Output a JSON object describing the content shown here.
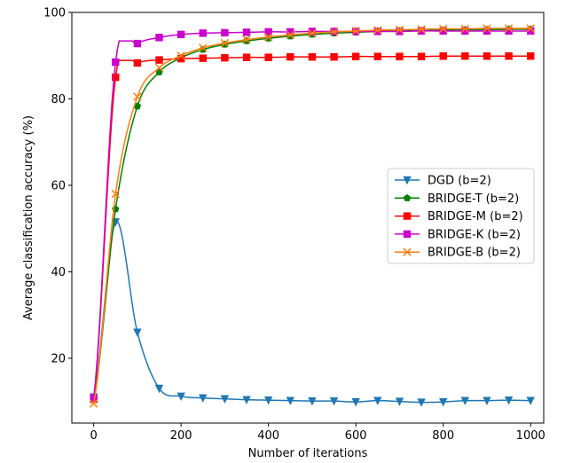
{
  "chart_data": {
    "type": "line",
    "title": "",
    "xlabel": "Number of iterations",
    "ylabel": "Average classification accuracy (%)",
    "xlim": [
      -50,
      1030
    ],
    "ylim": [
      5,
      100
    ],
    "xticks": [
      0,
      200,
      400,
      600,
      800,
      1000
    ],
    "yticks": [
      20,
      40,
      60,
      80,
      100
    ],
    "grid": false,
    "legend_position": "center-right",
    "x": [
      0,
      50,
      100,
      150,
      200,
      250,
      300,
      350,
      400,
      450,
      500,
      550,
      600,
      650,
      700,
      750,
      800,
      850,
      900,
      950,
      1000
    ],
    "series": [
      {
        "name": "DGD (b=2)",
        "color": "#1f77b4",
        "marker": "triangle-down",
        "values": [
          11,
          51.5,
          26,
          13,
          11.2,
          10.8,
          10.6,
          10.4,
          10.3,
          10.2,
          10.1,
          10.1,
          9.9,
          10.2,
          10.0,
          9.8,
          9.9,
          10.2,
          10.2,
          10.3,
          10.2
        ]
      },
      {
        "name": "BRIDGE-T (b=2)",
        "color": "#008000",
        "marker": "pentagon",
        "values": [
          10.5,
          54.5,
          78.3,
          86.2,
          89.5,
          91.4,
          92.6,
          93.4,
          94.0,
          94.5,
          94.9,
          95.2,
          95.4,
          95.6,
          95.7,
          95.8,
          95.9,
          96.0,
          96.0,
          96.1,
          96.1
        ]
      },
      {
        "name": "BRIDGE-M (b=2)",
        "color": "#ff0000",
        "marker": "square",
        "values": [
          10.5,
          85.0,
          88.3,
          89.0,
          89.3,
          89.4,
          89.5,
          89.6,
          89.6,
          89.7,
          89.7,
          89.7,
          89.8,
          89.8,
          89.8,
          89.8,
          89.9,
          89.9,
          89.9,
          89.9,
          89.9
        ]
      },
      {
        "name": "BRIDGE-K (b=2)",
        "color": "#cc00cc",
        "marker": "square",
        "values": [
          10.8,
          88.5,
          92.8,
          94.2,
          94.9,
          95.2,
          95.3,
          95.4,
          95.5,
          95.5,
          95.6,
          95.6,
          95.6,
          95.6,
          95.6,
          95.7,
          95.7,
          95.7,
          95.7,
          95.7,
          95.7
        ]
      },
      {
        "name": "BRIDGE-B (b=2)",
        "color": "#ff7f0e",
        "marker": "x",
        "values": [
          9.5,
          58.0,
          80.5,
          87.2,
          90.0,
          91.8,
          92.9,
          93.7,
          94.3,
          94.8,
          95.2,
          95.5,
          95.7,
          95.9,
          96.0,
          96.1,
          96.2,
          96.2,
          96.3,
          96.3,
          96.3
        ]
      }
    ]
  }
}
